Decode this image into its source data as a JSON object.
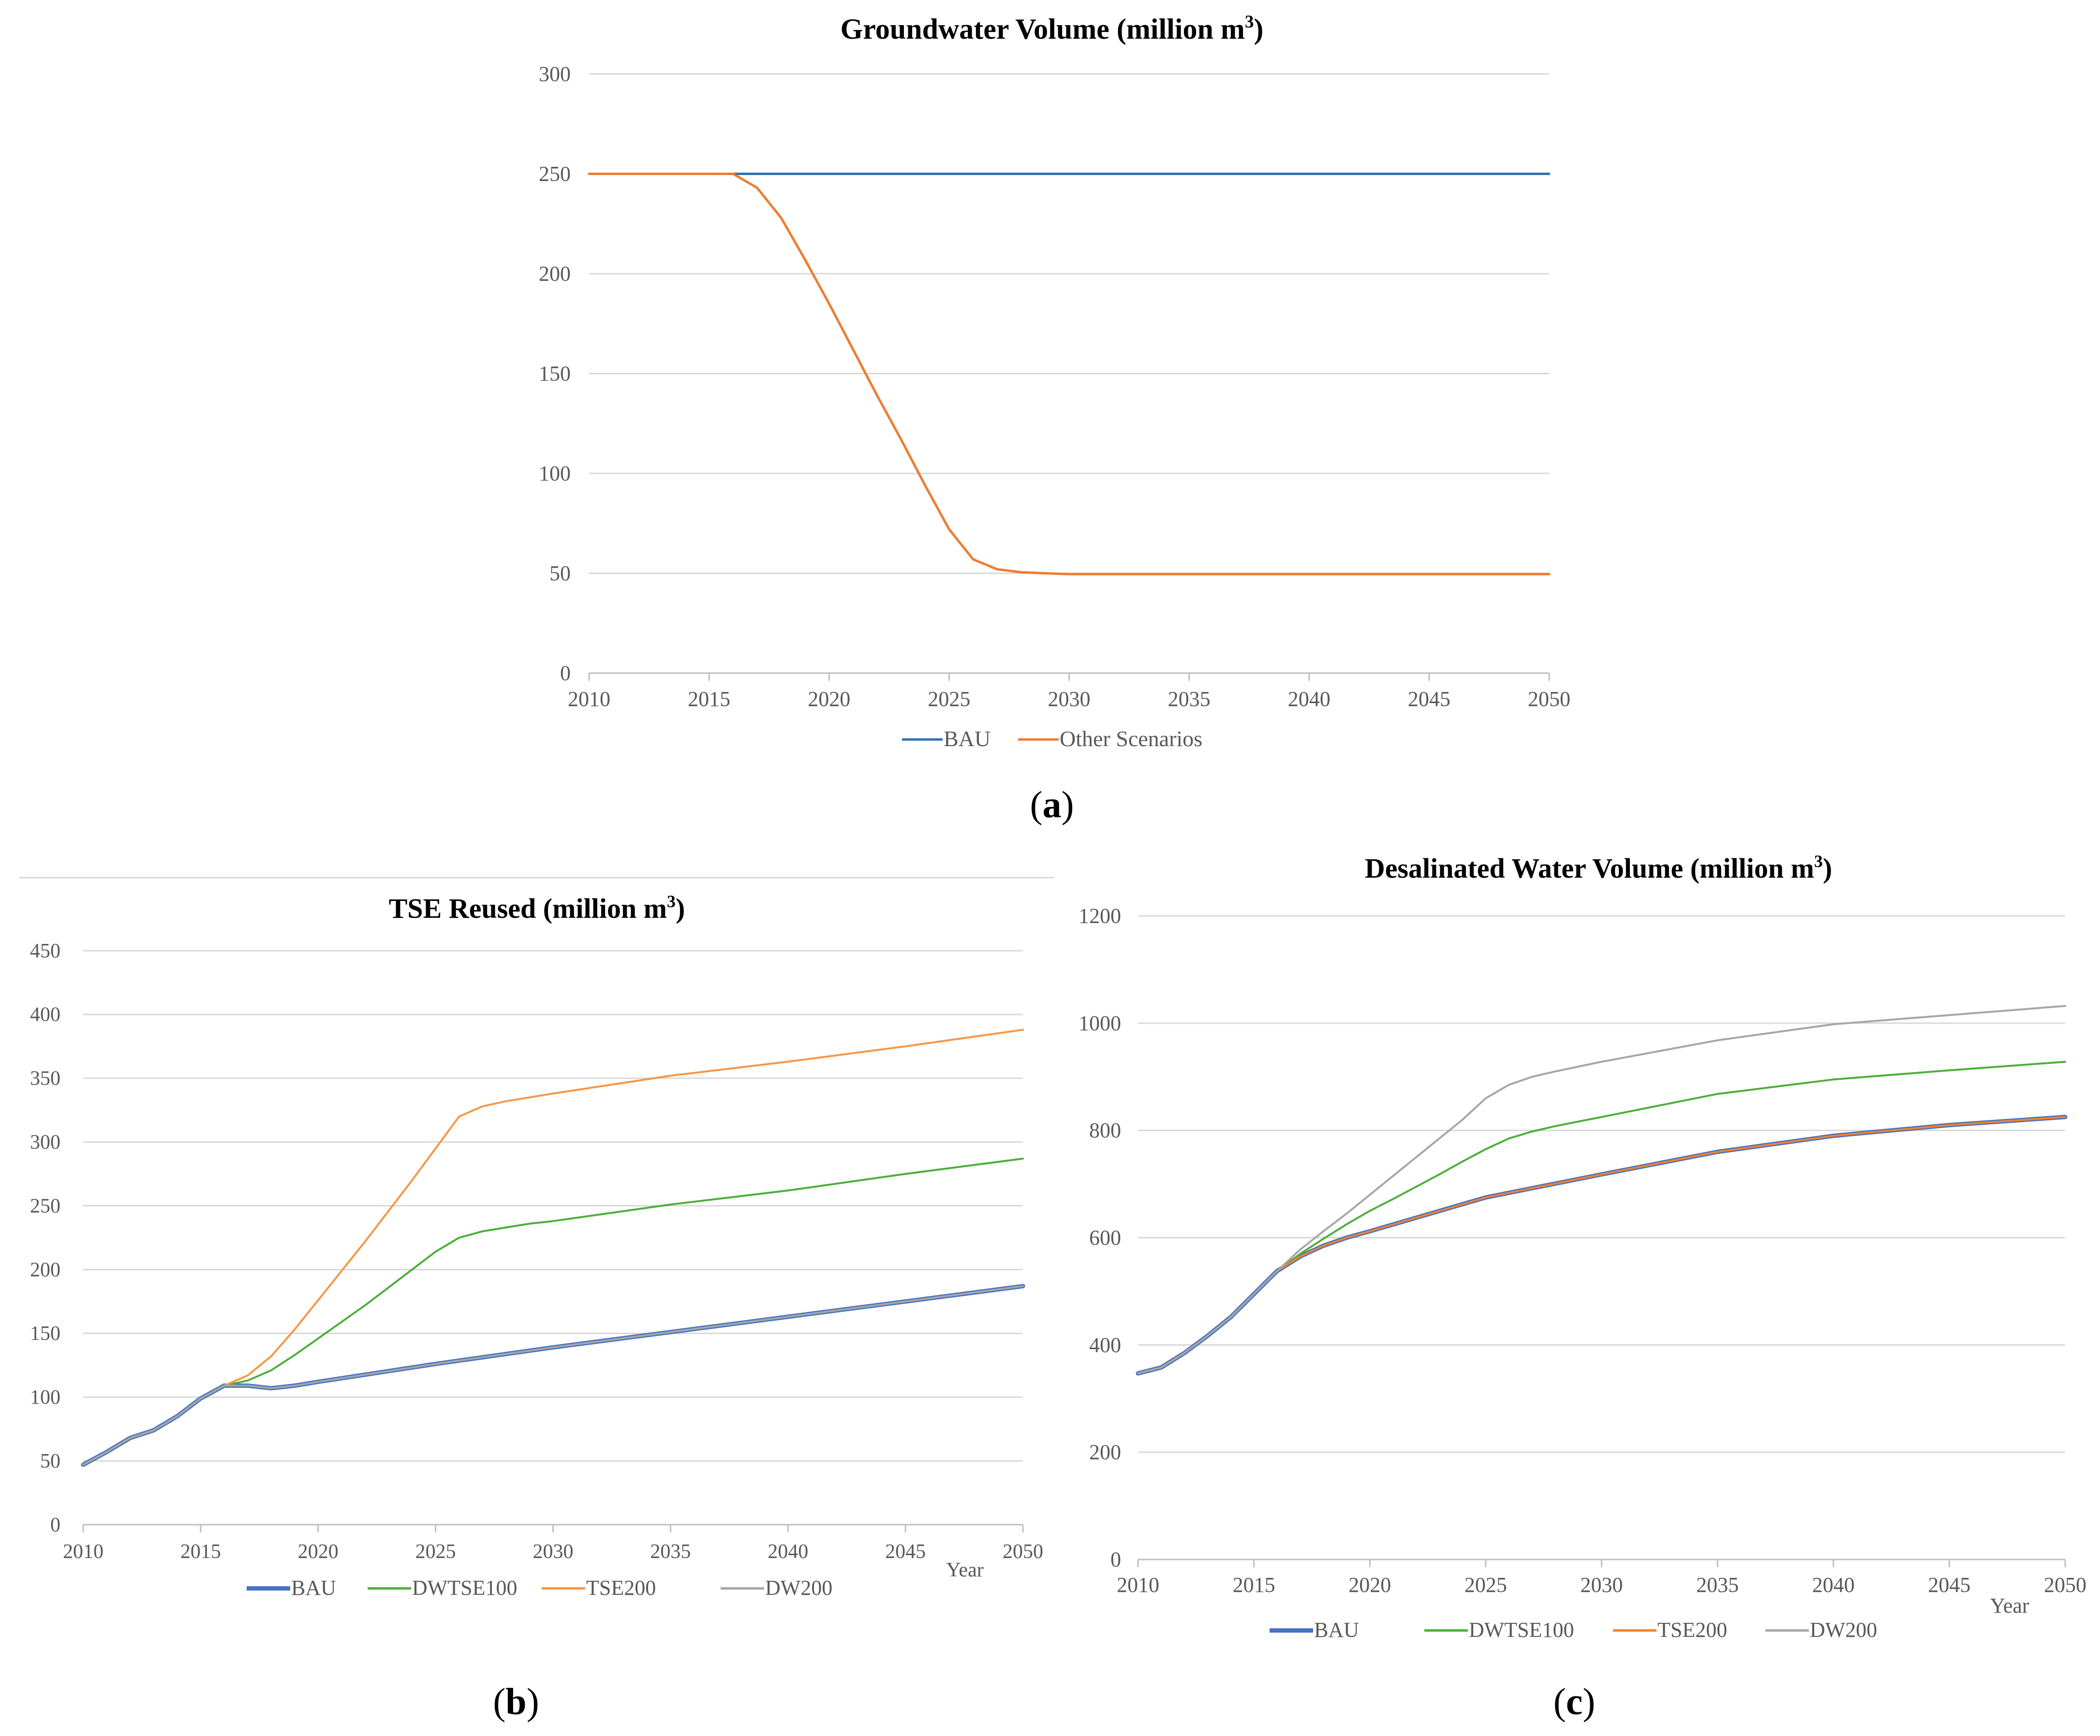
{
  "chart_data": [
    {
      "id": "a",
      "type": "line",
      "title": "Groundwater Volume (million m",
      "title_sup": "3",
      "title_close": ")",
      "panel_label": "a",
      "xlabel": "",
      "ylabel": "",
      "xlim": [
        2010,
        2050
      ],
      "ylim": [
        0,
        300
      ],
      "xticks": [
        2010,
        2015,
        2020,
        2025,
        2030,
        2035,
        2040,
        2045,
        2050
      ],
      "yticks": [
        0,
        50,
        100,
        150,
        200,
        250,
        300
      ],
      "grid": true,
      "legend_position": "bottom",
      "series": [
        {
          "name": "BAU",
          "color": "#2E75B6",
          "width": 5,
          "x": [
            2010,
            2050
          ],
          "y": [
            250,
            250
          ]
        },
        {
          "name": "Other Scenarios",
          "color": "#ED7D31",
          "width": 5,
          "x": [
            2010,
            2016,
            2017,
            2018,
            2019,
            2020,
            2021,
            2022,
            2023,
            2024,
            2025,
            2026,
            2027,
            2028,
            2029,
            2030,
            2035,
            2040,
            2045,
            2050
          ],
          "y": [
            250,
            250,
            243,
            228,
            207,
            185,
            162,
            139,
            117,
            94,
            72,
            57,
            52,
            50.5,
            50,
            49.6,
            49.6,
            49.6,
            49.6,
            49.6
          ]
        }
      ]
    },
    {
      "id": "b",
      "type": "line",
      "title": "TSE Reused (million m",
      "title_sup": "3",
      "title_close": ")",
      "panel_label": "b",
      "xlabel": "Year",
      "ylabel": "",
      "xlim": [
        2010,
        2050
      ],
      "ylim": [
        0,
        450
      ],
      "xticks": [
        2010,
        2015,
        2020,
        2025,
        2030,
        2035,
        2040,
        2045,
        2050
      ],
      "yticks": [
        0,
        50,
        100,
        150,
        200,
        250,
        300,
        350,
        400,
        450
      ],
      "grid": true,
      "legend_position": "bottom",
      "series": [
        {
          "name": "BAU",
          "color": "#4472C4",
          "width": 9,
          "x": [
            2010,
            2011,
            2012,
            2013,
            2014,
            2015,
            2016,
            2017,
            2018,
            2019,
            2020,
            2025,
            2030,
            2035,
            2040,
            2045,
            2050
          ],
          "y": [
            47,
            57,
            68,
            74,
            85,
            99,
            109,
            109,
            107,
            109,
            112,
            126,
            139,
            151,
            163,
            175,
            187
          ]
        },
        {
          "name": "DWTSE100",
          "color": "#4CAF3A",
          "width": 4,
          "x": [
            2010,
            2011,
            2012,
            2013,
            2014,
            2015,
            2016,
            2017,
            2018,
            2019,
            2020,
            2021,
            2022,
            2023,
            2024,
            2025,
            2026,
            2027,
            2028,
            2029,
            2030,
            2035,
            2040,
            2045,
            2050
          ],
          "y": [
            47,
            57,
            68,
            74,
            85,
            99,
            109,
            113,
            121,
            133,
            146,
            159,
            172,
            186,
            200,
            214,
            225,
            230,
            233,
            236,
            238,
            251,
            262,
            275,
            287
          ]
        },
        {
          "name": "TSE200",
          "color": "#F79646",
          "width": 4,
          "x": [
            2010,
            2011,
            2012,
            2013,
            2014,
            2015,
            2016,
            2017,
            2018,
            2019,
            2020,
            2021,
            2022,
            2023,
            2024,
            2025,
            2026,
            2027,
            2028,
            2029,
            2030,
            2035,
            2040,
            2045,
            2050
          ],
          "y": [
            47,
            57,
            68,
            74,
            85,
            99,
            109,
            117,
            132,
            153,
            176,
            199,
            222,
            246,
            270,
            295,
            320,
            328,
            332,
            335,
            338,
            352,
            363,
            375,
            388
          ]
        },
        {
          "name": "DW200",
          "color": "#A6A6A6",
          "width": 4,
          "x": [
            2010,
            2011,
            2012,
            2013,
            2014,
            2015,
            2016,
            2017,
            2018,
            2019,
            2020,
            2025,
            2030,
            2035,
            2040,
            2045,
            2050
          ],
          "y": [
            47,
            57,
            68,
            74,
            85,
            99,
            109,
            109,
            107,
            109,
            112,
            126,
            139,
            151,
            163,
            175,
            187
          ]
        }
      ]
    },
    {
      "id": "c",
      "type": "line",
      "title": "Desalinated Water Volume (million m",
      "title_sup": "3",
      "title_close": ")",
      "panel_label": "c",
      "xlabel": "Year",
      "ylabel": "",
      "xlim": [
        2010,
        2050
      ],
      "ylim": [
        0,
        1200
      ],
      "xticks": [
        2010,
        2015,
        2020,
        2025,
        2030,
        2035,
        2040,
        2045,
        2050
      ],
      "yticks": [
        0,
        200,
        400,
        600,
        800,
        1000,
        1200
      ],
      "grid": true,
      "legend_position": "bottom",
      "series": [
        {
          "name": "BAU",
          "color": "#4472C4",
          "width": 9,
          "x": [
            2010,
            2011,
            2012,
            2013,
            2014,
            2015,
            2016,
            2017,
            2018,
            2019,
            2020,
            2025,
            2030,
            2035,
            2040,
            2045,
            2050
          ],
          "y": [
            347,
            358,
            385,
            417,
            452,
            495,
            538,
            565,
            585,
            600,
            612,
            675,
            718,
            760,
            790,
            810,
            825
          ]
        },
        {
          "name": "DWTSE100",
          "color": "#4CAF3A",
          "width": 4,
          "x": [
            2010,
            2011,
            2012,
            2013,
            2014,
            2015,
            2016,
            2017,
            2018,
            2019,
            2020,
            2021,
            2022,
            2023,
            2024,
            2025,
            2026,
            2027,
            2028,
            2030,
            2035,
            2040,
            2045,
            2050
          ],
          "y": [
            347,
            358,
            385,
            417,
            452,
            495,
            538,
            570,
            598,
            625,
            650,
            672,
            695,
            718,
            742,
            765,
            785,
            798,
            808,
            825,
            868,
            895,
            912,
            928
          ]
        },
        {
          "name": "TSE200",
          "color": "#F0822E",
          "width": 4,
          "x": [
            2010,
            2011,
            2012,
            2013,
            2014,
            2015,
            2016,
            2017,
            2018,
            2019,
            2020,
            2025,
            2030,
            2035,
            2040,
            2045,
            2050
          ],
          "y": [
            347,
            358,
            385,
            417,
            452,
            495,
            538,
            565,
            585,
            600,
            612,
            675,
            718,
            760,
            790,
            810,
            825
          ]
        },
        {
          "name": "DW200",
          "color": "#A6A6A6",
          "width": 4,
          "x": [
            2010,
            2011,
            2012,
            2013,
            2014,
            2015,
            2016,
            2017,
            2018,
            2019,
            2020,
            2021,
            2022,
            2023,
            2024,
            2025,
            2026,
            2027,
            2028,
            2030,
            2035,
            2040,
            2045,
            2050
          ],
          "y": [
            347,
            358,
            385,
            417,
            452,
            495,
            538,
            578,
            612,
            645,
            680,
            715,
            750,
            785,
            820,
            860,
            885,
            900,
            910,
            928,
            968,
            998,
            1015,
            1032
          ]
        }
      ]
    }
  ]
}
